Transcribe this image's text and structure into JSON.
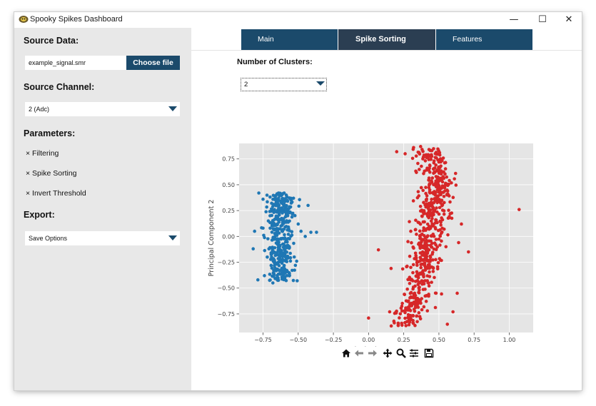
{
  "window": {
    "title": "Spooky Spikes Dashboard",
    "controls": {
      "minimize": "—",
      "maximize": "☐",
      "close": "✕"
    }
  },
  "sidebar": {
    "source_data_title": "Source Data:",
    "file_name": "example_signal.smr",
    "choose_file_label": "Choose file",
    "source_channel_title": "Source Channel:",
    "source_channel_value": "2 (Adc)",
    "parameters_title": "Parameters:",
    "parameters": [
      {
        "label": "× Filtering"
      },
      {
        "label": "× Spike Sorting"
      },
      {
        "label": "× Invert Threshold"
      }
    ],
    "export_title": "Export:",
    "export_value": "Save Options"
  },
  "tabs": [
    {
      "label": "Main",
      "active": false
    },
    {
      "label": "Spike Sorting",
      "active": true
    },
    {
      "label": "Features",
      "active": false
    }
  ],
  "clusters": {
    "label": "Number of Clusters:",
    "value": "2"
  },
  "colors": {
    "accent": "#1b4a6b",
    "tab_active": "#2b3e52",
    "sidebar_bg": "#e8e8e8",
    "cluster_1": "#1f77b4",
    "cluster_2": "#d62728",
    "plot_bg": "#e5e5e5"
  },
  "toolbar": {
    "icons": [
      "home-icon",
      "back-arrow-icon",
      "forward-arrow-icon",
      "pan-icon",
      "zoom-icon",
      "configure-icon",
      "save-icon"
    ]
  },
  "chart_data": {
    "type": "scatter",
    "xlabel": "Principal Component 1",
    "ylabel": "Principal Component 2",
    "xlim": [
      -0.92,
      1.17
    ],
    "ylim": [
      -0.93,
      0.9
    ],
    "xticks": [
      -0.75,
      -0.5,
      -0.25,
      0.0,
      0.25,
      0.5,
      0.75,
      1.0
    ],
    "xtick_labels": [
      "−0.75",
      "−0.50",
      "−0.25",
      "0.00",
      "0.25",
      "0.50",
      "0.75",
      "1.00"
    ],
    "yticks": [
      0.75,
      0.5,
      0.25,
      0.0,
      -0.25,
      -0.5,
      -0.75
    ],
    "ytick_labels": [
      "0.75",
      "0.50",
      "0.25",
      "0.00",
      "−0.25",
      "−0.50",
      "−0.75"
    ],
    "grid": true,
    "series": [
      {
        "color": "#1f77b4",
        "points": [
          [
            -0.82,
            -0.12
          ],
          [
            -0.75,
            0.36
          ],
          [
            -0.75,
            0.08
          ],
          [
            -0.66,
            0.31
          ],
          [
            -0.57,
            0.02
          ],
          [
            -0.48,
            0.05
          ],
          [
            -0.43,
            0.3
          ],
          [
            -0.41,
            0.04
          ],
          [
            -0.37,
            0.04
          ],
          [
            -0.81,
            0.05
          ],
          [
            -0.74,
            -0.38
          ],
          [
            -0.68,
            -0.45
          ],
          [
            -0.58,
            -0.38
          ],
          [
            -0.64,
            0.42
          ],
          [
            -0.6,
            0.42
          ],
          [
            -0.55,
            0.35
          ],
          [
            -0.5,
            0.12
          ],
          [
            -0.45,
            0.0
          ],
          [
            -0.7,
            0.2
          ],
          [
            -0.72,
            -0.2
          ],
          [
            -0.52,
            -0.28
          ],
          [
            -0.78,
            0.42
          ]
        ]
      },
      {
        "color": "#d62728",
        "points": [
          [
            1.07,
            0.26
          ],
          [
            0.07,
            -0.13
          ],
          [
            0.0,
            -0.79
          ],
          [
            0.15,
            -0.73
          ],
          [
            0.16,
            -0.31
          ],
          [
            0.2,
            0.82
          ],
          [
            0.26,
            0.8
          ],
          [
            0.32,
            0.86
          ],
          [
            0.37,
            0.87
          ],
          [
            0.45,
            0.83
          ],
          [
            0.5,
            0.72
          ],
          [
            0.64,
            -0.06
          ],
          [
            0.66,
            0.12
          ],
          [
            0.71,
            -0.15
          ],
          [
            0.63,
            -0.55
          ],
          [
            0.6,
            -0.73
          ],
          [
            0.56,
            -0.85
          ],
          [
            0.3,
            -0.3
          ],
          [
            0.28,
            -0.05
          ],
          [
            0.3,
            0.05
          ],
          [
            0.55,
            -0.1
          ],
          [
            0.58,
            0.22
          ],
          [
            0.18,
            -0.82
          ]
        ]
      }
    ]
  }
}
